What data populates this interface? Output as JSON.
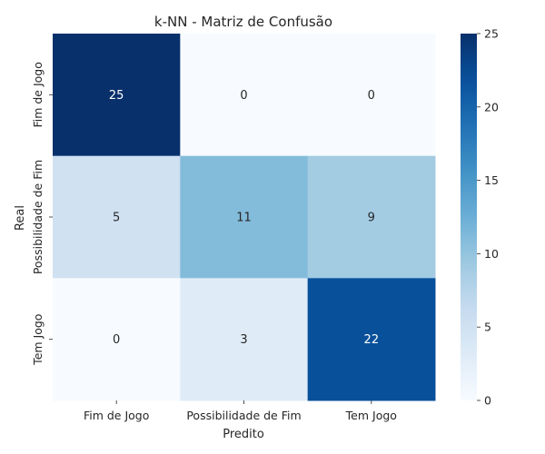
{
  "chart_data": {
    "type": "heatmap",
    "title": "k-NN - Matriz de Confusão",
    "xlabel": "Predito",
    "ylabel": "Real",
    "x_categories": [
      "Fim de Jogo",
      "Possibilidade de Fim",
      "Tem Jogo"
    ],
    "y_categories": [
      "Fim de Jogo",
      "Possibilidade de Fim",
      "Tem Jogo"
    ],
    "values": [
      [
        25,
        0,
        0
      ],
      [
        5,
        11,
        9
      ],
      [
        0,
        3,
        22
      ]
    ],
    "color_range": [
      0,
      25
    ],
    "colormap": "Blues",
    "colorbar_ticks": [
      "0",
      "5",
      "10",
      "15",
      "20",
      "25"
    ],
    "grid": false,
    "colorbar_position": "right"
  }
}
